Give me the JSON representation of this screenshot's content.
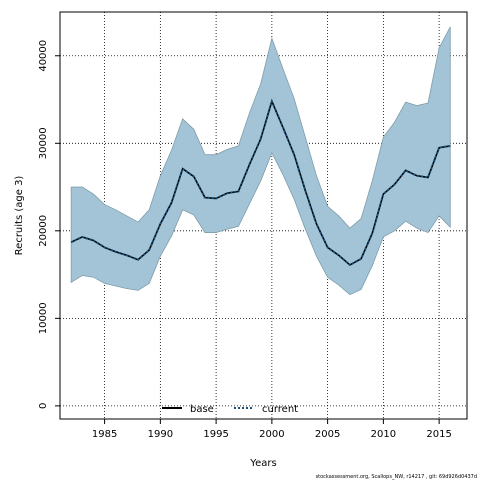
{
  "chart_data": {
    "type": "line",
    "xlabel": "Years",
    "ylabel": "Recruits (age 3)",
    "xlim": [
      1981,
      2017.5
    ],
    "ylim": [
      -1500,
      45000
    ],
    "x_ticks": [
      1985,
      1990,
      1995,
      2000,
      2005,
      2010,
      2015
    ],
    "y_ticks": [
      0,
      10000,
      20000,
      30000,
      40000
    ],
    "grid": true,
    "legend_position": "bottom-center",
    "x": [
      1982,
      1983,
      1984,
      1985,
      1986,
      1987,
      1988,
      1989,
      1990,
      1991,
      1992,
      1993,
      1994,
      1995,
      1996,
      1997,
      1998,
      1999,
      2000,
      2001,
      2002,
      2003,
      2004,
      2005,
      2006,
      2007,
      2008,
      2009,
      2010,
      2011,
      2012,
      2013,
      2014,
      2015,
      2016
    ],
    "series": [
      {
        "name": "base",
        "style": "solid",
        "color": "#000000",
        "values": [
          18700,
          19300,
          18900,
          18100,
          17600,
          17200,
          16700,
          17800,
          20800,
          23200,
          27100,
          26200,
          23800,
          23700,
          24300,
          24500,
          27600,
          30500,
          34800,
          31800,
          28700,
          24600,
          20800,
          18100,
          17200,
          16100,
          16800,
          19700,
          24200,
          25300,
          26900,
          26300,
          26100,
          29500,
          29700
        ]
      },
      {
        "name": "current",
        "style": "dotted",
        "color": "#1a4f7a",
        "values": [
          18700,
          19300,
          18900,
          18100,
          17600,
          17200,
          16700,
          17800,
          20800,
          23200,
          27100,
          26200,
          23800,
          23700,
          24300,
          24500,
          27600,
          30500,
          34800,
          31800,
          28700,
          24600,
          20800,
          18100,
          17200,
          16100,
          16800,
          19700,
          24200,
          25300,
          26900,
          26300,
          26100,
          29500,
          29700
        ]
      }
    ],
    "band": {
      "fill": "#a3c4d6",
      "stroke": "#7f9dab",
      "upper": [
        25000,
        25000,
        24200,
        23000,
        22400,
        21700,
        21000,
        22400,
        26300,
        29200,
        32800,
        31600,
        28700,
        28700,
        29300,
        29700,
        33500,
        36800,
        42000,
        38500,
        35100,
        30700,
        26300,
        22800,
        21700,
        20300,
        21400,
        25700,
        30700,
        32400,
        34700,
        34300,
        34600,
        40900,
        43300
      ],
      "lower": [
        14100,
        14900,
        14700,
        14000,
        13700,
        13400,
        13200,
        14000,
        17100,
        19400,
        22400,
        21800,
        19800,
        19800,
        20200,
        20500,
        23100,
        25700,
        28900,
        26400,
        23600,
        20200,
        17100,
        14700,
        13800,
        12700,
        13300,
        16000,
        19300,
        20000,
        21100,
        20300,
        19800,
        21700,
        20400
      ]
    }
  },
  "footer": {
    "text": "stockassessment.org, Scallops_NW, r14217 , git: 69d926d0437d"
  }
}
